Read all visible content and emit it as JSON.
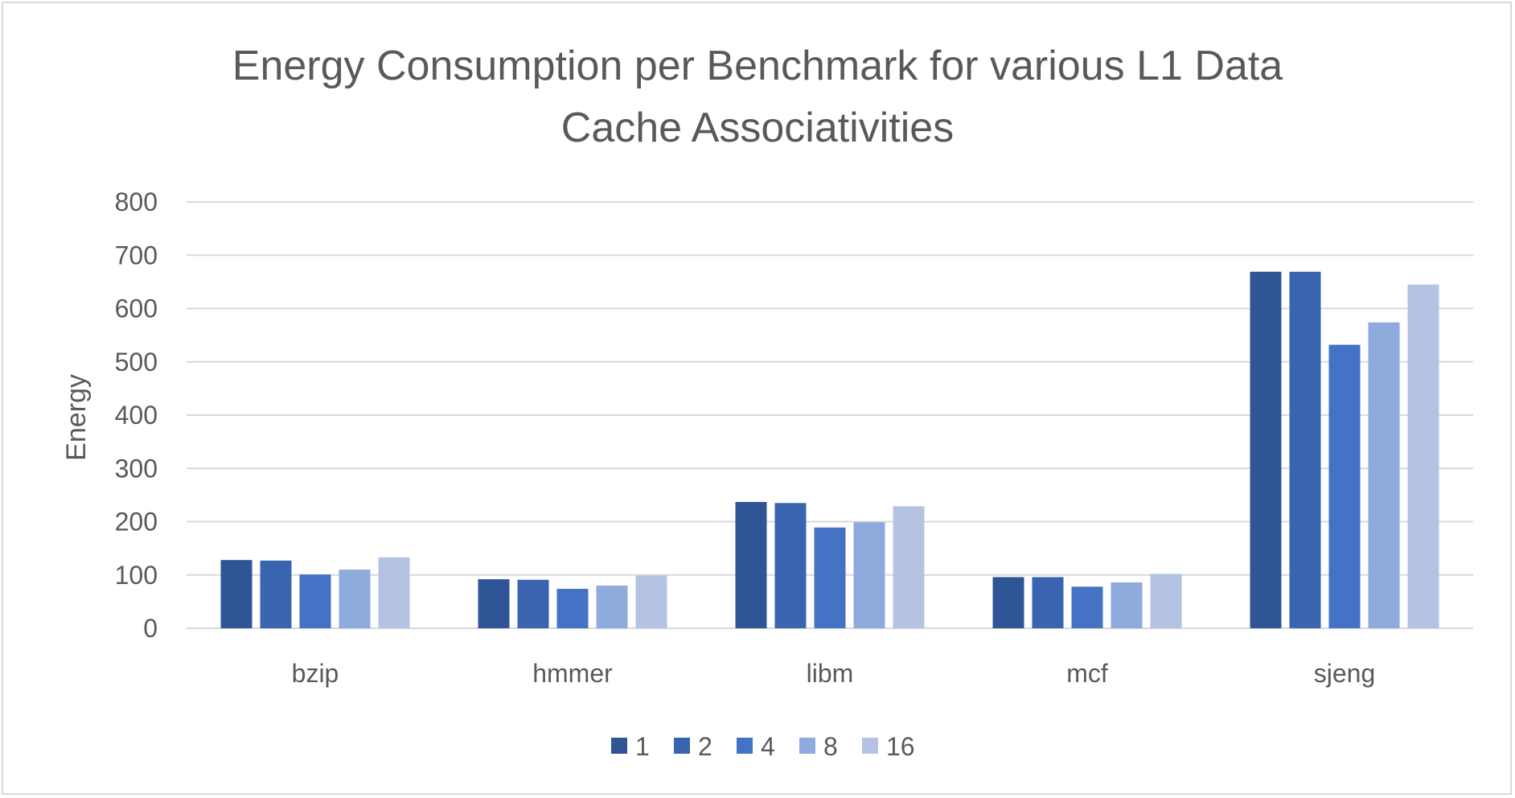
{
  "chart_data": {
    "type": "bar",
    "title": "Energy Consumption per Benchmark for various L1 Data Cache Associativities",
    "title_lines": [
      "Energy Consumption per Benchmark for various L1 Data",
      "Cache Associativities"
    ],
    "xlabel": "",
    "ylabel": "Energy",
    "ylim": [
      0,
      800
    ],
    "yticks": [
      0,
      100,
      200,
      300,
      400,
      500,
      600,
      700,
      800
    ],
    "grid": true,
    "legend_position": "bottom",
    "categories": [
      "bzip",
      "hmmer",
      "libm",
      "mcf",
      "sjeng"
    ],
    "series": [
      {
        "name": "1",
        "color": "#2f5597",
        "values": [
          128,
          92,
          237,
          96,
          669
        ]
      },
      {
        "name": "2",
        "color": "#3a64b0",
        "values": [
          127,
          91,
          235,
          96,
          669
        ]
      },
      {
        "name": "4",
        "color": "#4472c4",
        "values": [
          101,
          74,
          189,
          78,
          532
        ]
      },
      {
        "name": "8",
        "color": "#8faadc",
        "values": [
          110,
          80,
          199,
          86,
          574
        ]
      },
      {
        "name": "16",
        "color": "#b4c3e3",
        "values": [
          133,
          99,
          229,
          102,
          645
        ]
      }
    ]
  }
}
